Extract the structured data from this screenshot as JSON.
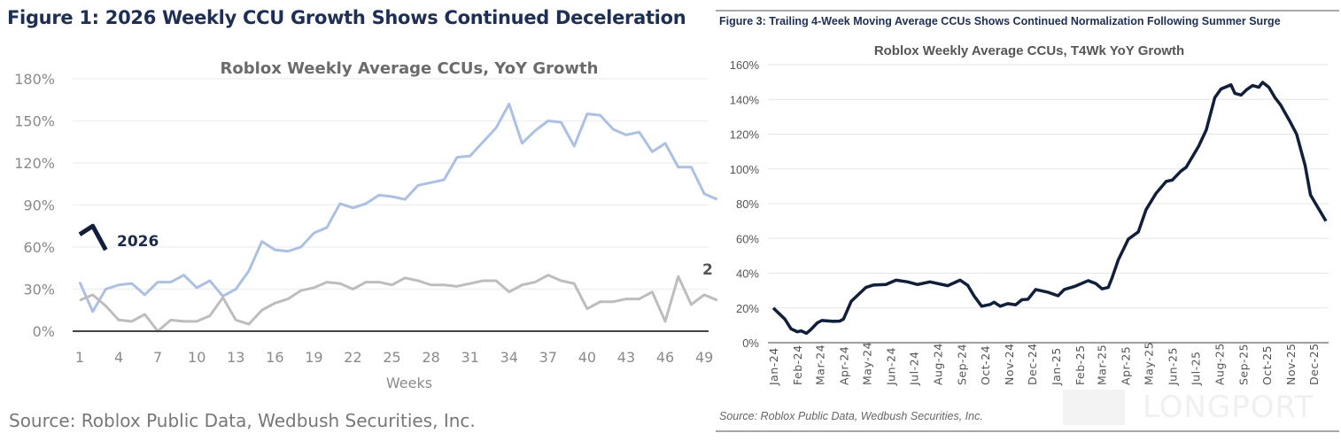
{
  "left_figure": {
    "figure_title": "Figure 1: 2026 Weekly CCU Growth Shows Continued Deceleration",
    "source": "Source: Roblox Public Data, Wedbush Securities, Inc."
  },
  "right_figure": {
    "figure_title": "Figure 3: Trailing 4-Week Moving Average CCUs Shows Continued Normalization Following Summer Surge",
    "source": "Source: Roblox Public Data, Wedbush Securities, Inc.",
    "watermark": "LONGPORT"
  },
  "chart_data": [
    {
      "type": "line",
      "title": "Roblox Weekly Average CCUs, YoY Growth",
      "xlabel": "Weeks",
      "ylabel": "",
      "xlim": [
        1,
        50
      ],
      "ylim": [
        0,
        180
      ],
      "yticks": [
        "0%",
        "30%",
        "60%",
        "90%",
        "120%",
        "150%",
        "180%"
      ],
      "ytick_values": [
        0,
        30,
        60,
        90,
        120,
        150,
        180
      ],
      "xticks": [
        "1",
        "4",
        "7",
        "10",
        "13",
        "16",
        "19",
        "22",
        "25",
        "28",
        "31",
        "34",
        "37",
        "40",
        "43",
        "46",
        "49"
      ],
      "grid": true,
      "series": [
        {
          "color": "#a9c0ea",
          "x": [
            1,
            2,
            3,
            4,
            5,
            6,
            7,
            8,
            9,
            10,
            11,
            12,
            13,
            14,
            15,
            16,
            17,
            18,
            19,
            20,
            21,
            22,
            23,
            24,
            25,
            26,
            27,
            28,
            29,
            30,
            31,
            32,
            33,
            34,
            35,
            36,
            37,
            38,
            39,
            40,
            41,
            42,
            43,
            44,
            45,
            46,
            47,
            48,
            49,
            50
          ],
          "values": [
            35,
            14,
            30,
            33,
            34,
            26,
            35,
            35,
            40,
            31,
            36,
            25,
            30,
            43,
            64,
            58,
            57,
            60,
            70,
            74,
            91,
            88,
            91,
            97,
            96,
            94,
            104,
            106,
            108,
            124,
            125,
            135,
            145,
            162,
            134,
            143,
            150,
            149,
            132,
            155,
            154,
            144,
            140,
            142,
            128,
            134,
            117,
            117,
            98,
            94
          ]
        },
        {
          "color": "#bdbdbd",
          "x": [
            1,
            2,
            3,
            4,
            5,
            6,
            7,
            8,
            9,
            10,
            11,
            12,
            13,
            14,
            15,
            16,
            17,
            18,
            19,
            20,
            21,
            22,
            23,
            24,
            25,
            26,
            27,
            28,
            29,
            30,
            31,
            32,
            33,
            34,
            35,
            36,
            37,
            38,
            39,
            40,
            41,
            42,
            43,
            44,
            45,
            46,
            47,
            48,
            49,
            50
          ],
          "values": [
            22,
            26,
            18,
            8,
            7,
            12,
            0,
            8,
            7,
            7,
            11,
            24,
            8,
            5,
            15,
            20,
            23,
            29,
            31,
            35,
            34,
            30,
            35,
            35,
            33,
            38,
            36,
            33,
            33,
            32,
            34,
            36,
            36,
            28,
            33,
            35,
            40,
            36,
            34,
            16,
            21,
            21,
            23,
            23,
            28,
            7,
            39,
            19,
            26,
            22
          ]
        },
        {
          "name": "2026",
          "color": "#0f1f3d",
          "x": [
            1,
            2,
            3
          ],
          "values": [
            69,
            75,
            58
          ]
        }
      ],
      "annotations": [
        "2026",
        "2"
      ]
    },
    {
      "type": "line",
      "title": "Roblox Weekly Average CCUs, T4Wk YoY Growth",
      "xlabel": "",
      "ylabel": "",
      "xlim": [
        "2024-01-01",
        "2025-12-17"
      ],
      "ylim": [
        0,
        160
      ],
      "yticks": [
        "0%",
        "20%",
        "40%",
        "60%",
        "80%",
        "100%",
        "120%",
        "140%",
        "160%"
      ],
      "ytick_values": [
        0,
        20,
        40,
        60,
        80,
        100,
        120,
        140,
        160
      ],
      "xticks": [
        "Jan-24",
        "Feb-24",
        "Mar-24",
        "Apr-24",
        "May-24",
        "Jun-24",
        "Jul-24",
        "Aug-24",
        "Sep-24",
        "Oct-24",
        "Nov-24",
        "Dec-24",
        "Jan-25",
        "Feb-25",
        "Mar-25",
        "Apr-25",
        "May-25",
        "Jun-25",
        "Jul-25",
        "Aug-25",
        "Sep-25",
        "Oct-25",
        "Nov-25",
        "Dec-25"
      ],
      "grid": true,
      "series": [
        {
          "color": "#0f1f3d",
          "x": [
            "2024-01-01",
            "2024-01-16",
            "2024-01-24",
            "2024-02-01",
            "2024-02-06",
            "2024-02-13",
            "2024-02-19",
            "2024-02-27",
            "2024-03-04",
            "2024-03-19",
            "2024-03-27",
            "2024-04-01",
            "2024-04-11",
            "2024-04-30",
            "2024-05-10",
            "2024-05-26",
            "2024-06-08",
            "2024-06-23",
            "2024-07-06",
            "2024-07-22",
            "2024-08-14",
            "2024-08-30",
            "2024-09-09",
            "2024-09-17",
            "2024-09-27",
            "2024-10-08",
            "2024-10-13",
            "2024-10-21",
            "2024-10-31",
            "2024-11-10",
            "2024-11-18",
            "2024-11-26",
            "2024-12-06",
            "2024-12-22",
            "2025-01-04",
            "2025-01-12",
            "2025-01-25",
            "2025-02-12",
            "2025-02-22",
            "2025-03-02",
            "2025-03-10",
            "2025-03-15",
            "2025-03-23",
            "2025-04-05",
            "2025-04-18",
            "2025-04-28",
            "2025-05-11",
            "2025-05-24",
            "2025-06-01",
            "2025-06-12",
            "2025-06-19",
            "2025-07-05",
            "2025-07-15",
            "2025-07-26",
            "2025-08-03",
            "2025-08-16",
            "2025-08-21",
            "2025-08-29",
            "2025-09-05",
            "2025-09-13",
            "2025-09-21",
            "2025-09-26",
            "2025-10-04",
            "2025-10-12",
            "2025-10-19",
            "2025-11-01",
            "2025-11-09",
            "2025-11-20",
            "2025-11-27",
            "2025-12-05",
            "2025-12-17"
          ],
          "values": [
            20,
            13.6,
            8,
            6.3,
            6.8,
            5.4,
            7.7,
            11.4,
            12.8,
            12.3,
            12.4,
            13.6,
            23.8,
            31.8,
            33.2,
            33.5,
            36,
            35,
            33.5,
            35,
            32.8,
            36,
            33,
            27,
            21,
            22,
            23.3,
            21,
            22.5,
            21.8,
            24.7,
            25,
            30.6,
            29,
            27,
            30.6,
            32.3,
            35.7,
            34,
            31,
            31.8,
            37.4,
            47.7,
            59.6,
            63.8,
            76.6,
            86,
            92.8,
            93.6,
            98.7,
            101,
            113,
            122.5,
            141,
            146,
            148.4,
            143.5,
            142.5,
            145.5,
            148,
            147,
            149.8,
            147,
            141,
            137,
            126.8,
            120,
            102,
            85,
            79,
            70
          ]
        }
      ]
    }
  ]
}
